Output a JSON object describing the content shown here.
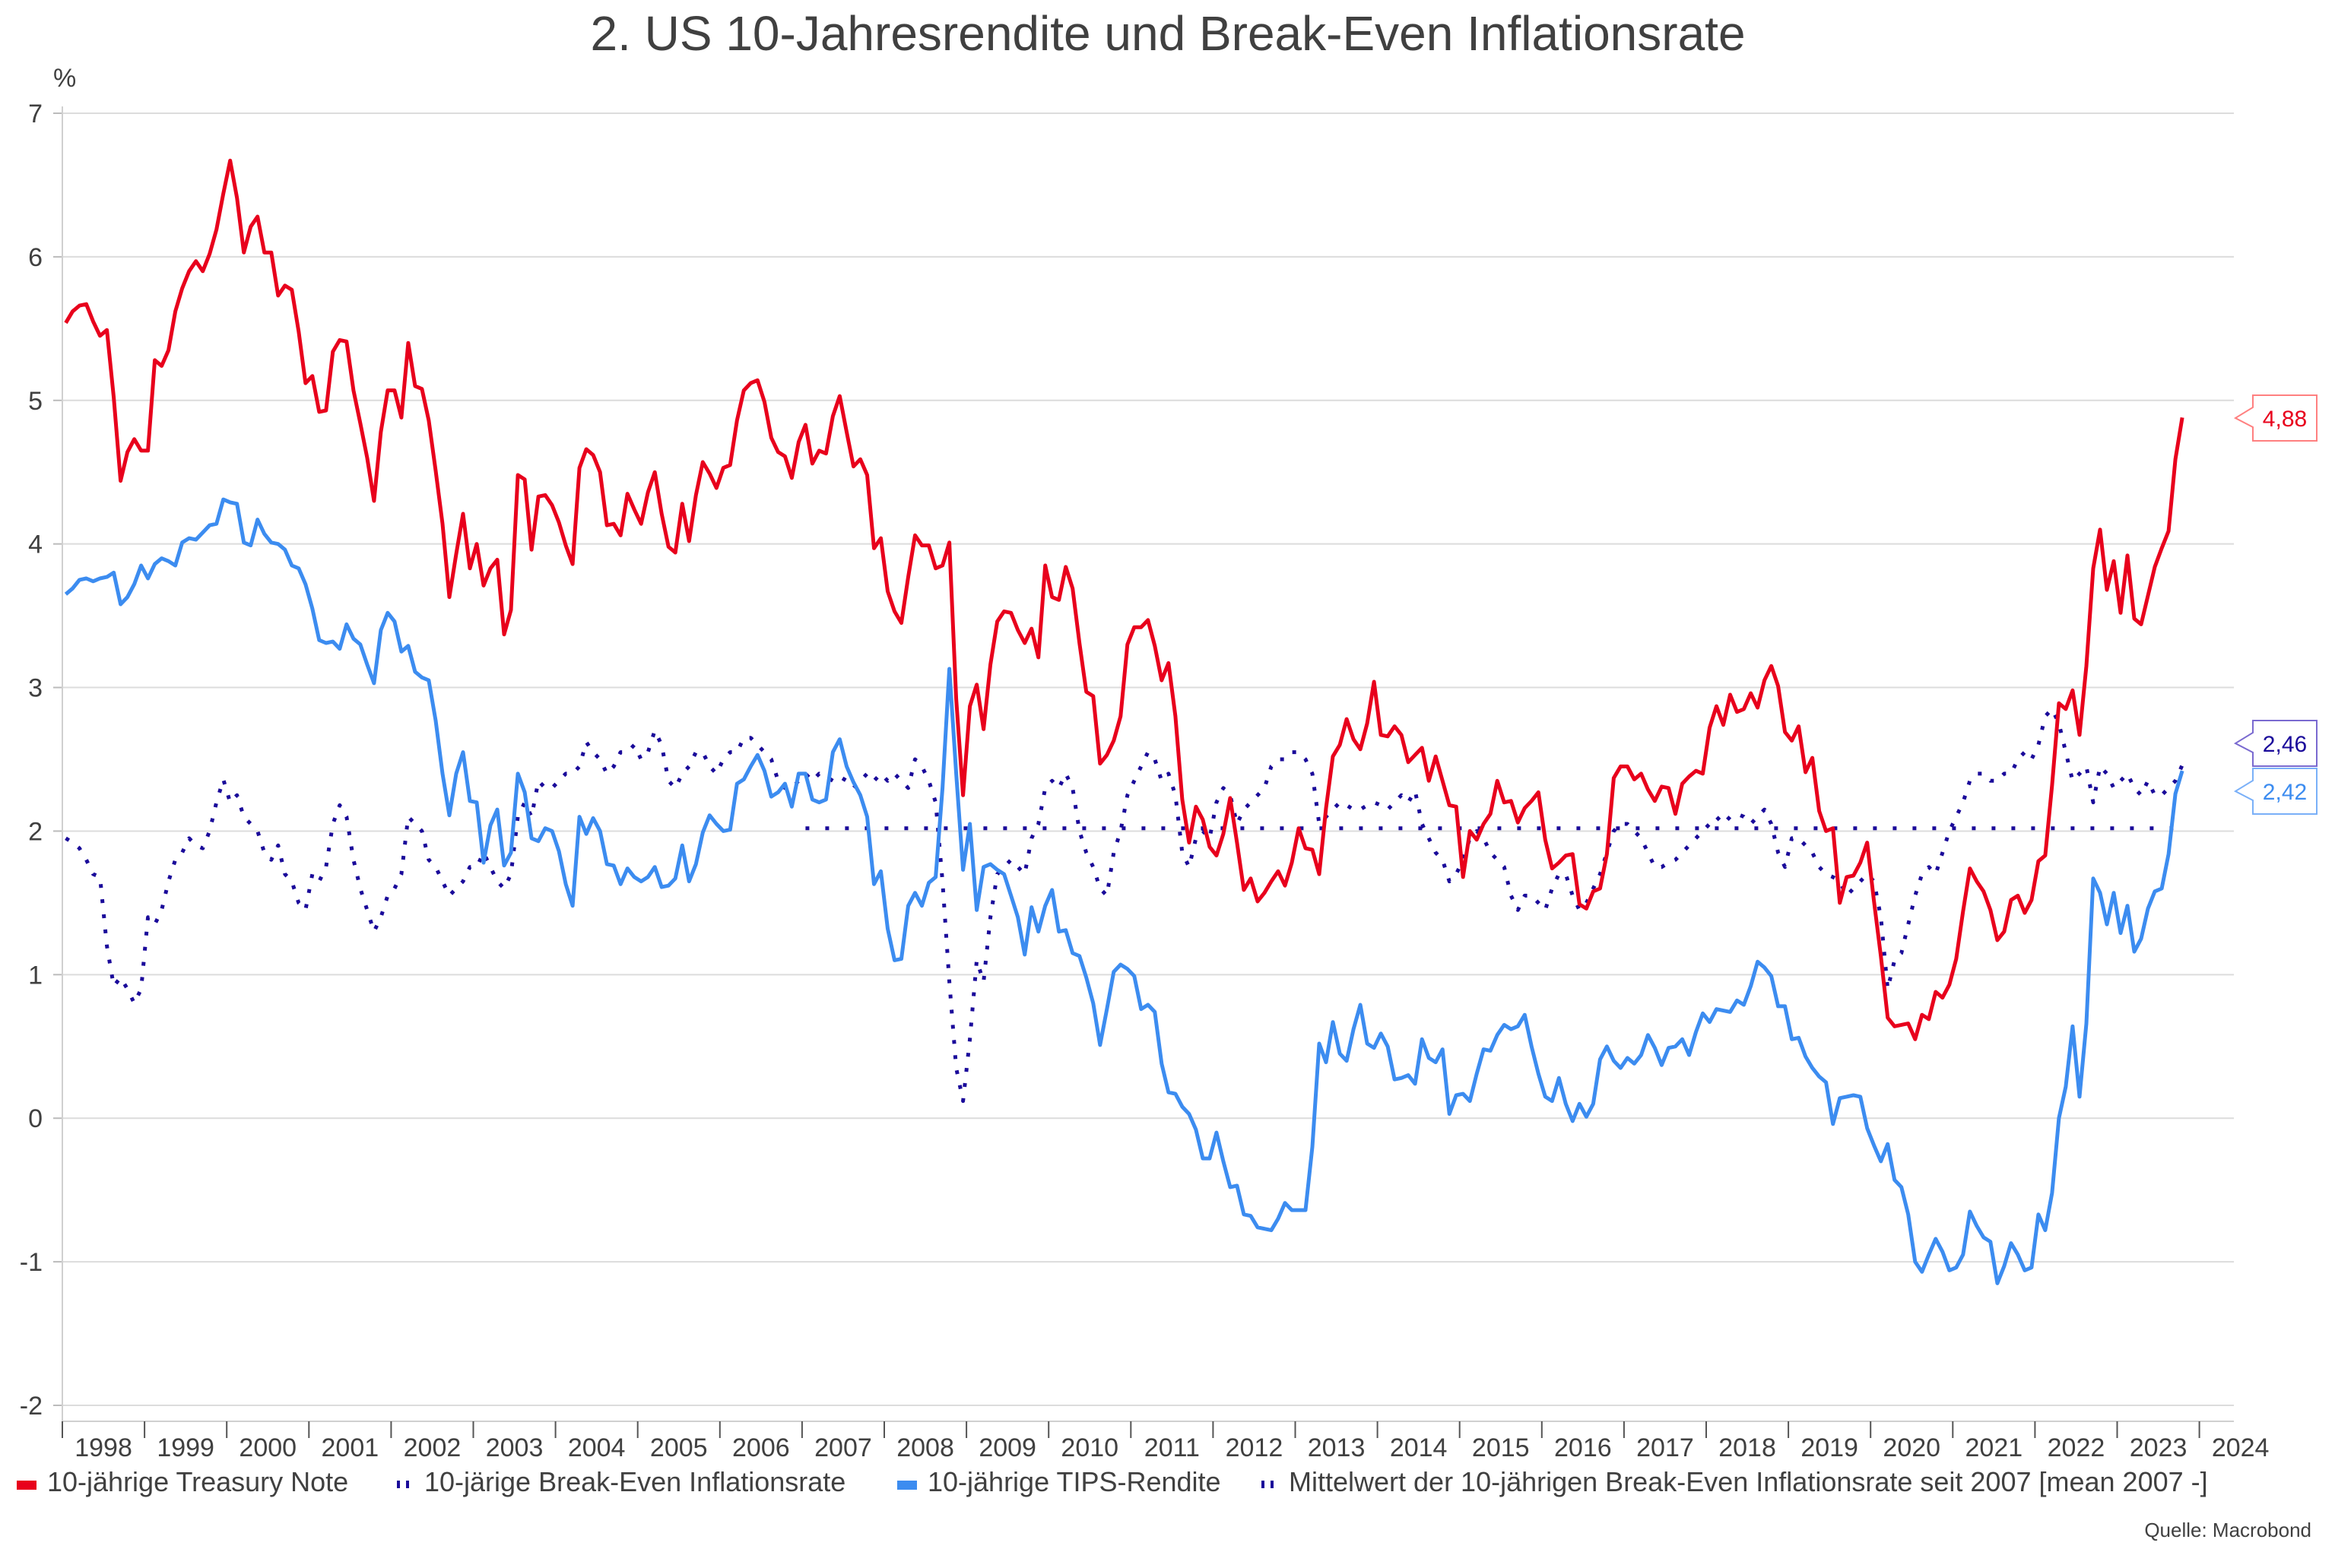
{
  "chart_data": {
    "type": "line",
    "title": "2. US 10-Jahresrendite und Break-Even Inflationsrate",
    "ylabel": "%",
    "xlabel": "",
    "ylim": [
      -2,
      7
    ],
    "yticks": [
      "-2",
      "-1",
      "0",
      "1",
      "2",
      "3",
      "4",
      "5",
      "6",
      "7"
    ],
    "xlim": [
      "1998-01",
      "2024-12"
    ],
    "xticks": [
      "1998",
      "1999",
      "2000",
      "2001",
      "2002",
      "2003",
      "2004",
      "2005",
      "2006",
      "2007",
      "2008",
      "2009",
      "2010",
      "2011",
      "2012",
      "2013",
      "2014",
      "2015",
      "2016",
      "2017",
      "2018",
      "2019",
      "2020",
      "2021",
      "2022",
      "2023",
      "2024"
    ],
    "grid": true,
    "legend_position": "bottom",
    "frequency": "monthly",
    "start": "1998-01",
    "source": "Quelle: Macrobond",
    "series": [
      {
        "name": "10-jährige Treasury Note",
        "color": "#e8001c",
        "style": "solid",
        "last_label": "4,88",
        "values": [
          5.54,
          5.62,
          5.66,
          5.67,
          5.55,
          5.45,
          5.49,
          5.02,
          4.44,
          4.64,
          4.73,
          4.65,
          4.65,
          5.28,
          5.24,
          5.35,
          5.62,
          5.78,
          5.9,
          5.97,
          5.9,
          6.02,
          6.19,
          6.44,
          6.67,
          6.41,
          6.03,
          6.21,
          6.28,
          6.03,
          6.03,
          5.73,
          5.8,
          5.77,
          5.48,
          5.12,
          5.17,
          4.92,
          4.93,
          5.34,
          5.42,
          5.41,
          5.07,
          4.84,
          4.6,
          4.3,
          4.78,
          5.07,
          5.07,
          4.88,
          5.4,
          5.1,
          5.08,
          4.86,
          4.51,
          4.14,
          3.63,
          3.93,
          4.21,
          3.83,
          4.0,
          3.71,
          3.83,
          3.89,
          3.37,
          3.54,
          4.48,
          4.45,
          3.96,
          4.33,
          4.34,
          4.27,
          4.15,
          3.99,
          3.86,
          4.53,
          4.66,
          4.62,
          4.5,
          4.13,
          4.14,
          4.06,
          4.35,
          4.24,
          4.14,
          4.36,
          4.5,
          4.21,
          3.98,
          3.94,
          4.28,
          4.02,
          4.34,
          4.57,
          4.49,
          4.39,
          4.53,
          4.55,
          4.86,
          5.07,
          5.12,
          5.14,
          4.99,
          4.74,
          4.64,
          4.61,
          4.46,
          4.71,
          4.83,
          4.56,
          4.65,
          4.63,
          4.89,
          5.03,
          4.78,
          4.54,
          4.59,
          4.48,
          3.97,
          4.04,
          3.67,
          3.53,
          3.45,
          3.77,
          4.06,
          3.99,
          3.99,
          3.83,
          3.85,
          4.01,
          2.92,
          2.25,
          2.87,
          3.02,
          2.71,
          3.16,
          3.46,
          3.53,
          3.52,
          3.4,
          3.31,
          3.41,
          3.21,
          3.85,
          3.63,
          3.61,
          3.84,
          3.69,
          3.31,
          2.97,
          2.94,
          2.47,
          2.53,
          2.63,
          2.8,
          3.3,
          3.42,
          3.42,
          3.47,
          3.29,
          3.05,
          3.17,
          2.8,
          2.22,
          1.92,
          2.17,
          2.08,
          1.89,
          1.83,
          1.98,
          2.23,
          1.92,
          1.59,
          1.67,
          1.51,
          1.57,
          1.65,
          1.72,
          1.62,
          1.78,
          2.02,
          1.88,
          1.87,
          1.7,
          2.16,
          2.52,
          2.6,
          2.78,
          2.64,
          2.57,
          2.75,
          3.04,
          2.67,
          2.66,
          2.73,
          2.67,
          2.48,
          2.53,
          2.58,
          2.35,
          2.52,
          2.35,
          2.18,
          2.17,
          1.68,
          2.0,
          1.94,
          2.05,
          2.12,
          2.35,
          2.2,
          2.21,
          2.06,
          2.16,
          2.21,
          2.27,
          1.94,
          1.74,
          1.78,
          1.83,
          1.84,
          1.49,
          1.46,
          1.58,
          1.6,
          1.84,
          2.37,
          2.45,
          2.45,
          2.36,
          2.4,
          2.29,
          2.21,
          2.31,
          2.3,
          2.12,
          2.33,
          2.38,
          2.42,
          2.4,
          2.72,
          2.87,
          2.74,
          2.95,
          2.83,
          2.85,
          2.96,
          2.86,
          3.05,
          3.15,
          3.01,
          2.69,
          2.63,
          2.73,
          2.41,
          2.51,
          2.14,
          2.0,
          2.02,
          1.5,
          1.68,
          1.69,
          1.78,
          1.92,
          1.51,
          1.13,
          0.7,
          0.64,
          0.65,
          0.66,
          0.55,
          0.72,
          0.69,
          0.88,
          0.84,
          0.93,
          1.11,
          1.44,
          1.74,
          1.65,
          1.58,
          1.45,
          1.24,
          1.3,
          1.52,
          1.55,
          1.43,
          1.52,
          1.79,
          1.83,
          2.32,
          2.89,
          2.85,
          2.98,
          2.67,
          3.15,
          3.83,
          4.1,
          3.68,
          3.88,
          3.52,
          3.92,
          3.48,
          3.44,
          3.64,
          3.84,
          3.97,
          4.09,
          4.59,
          4.88
        ]
      },
      {
        "name": "10-järige Break-Even Inflationsrate",
        "color": "#1a0a9a",
        "style": "dotted",
        "last_label": "2,46",
        "values": [
          1.95,
          1.92,
          1.88,
          1.8,
          1.7,
          1.68,
          1.2,
          0.92,
          0.98,
          0.9,
          0.8,
          0.9,
          1.4,
          1.35,
          1.45,
          1.65,
          1.8,
          1.85,
          1.95,
          1.9,
          1.88,
          2.0,
          2.2,
          2.36,
          2.2,
          2.25,
          2.1,
          2.05,
          2.0,
          1.85,
          1.8,
          1.9,
          1.7,
          1.65,
          1.5,
          1.45,
          1.7,
          1.65,
          1.75,
          2.05,
          2.18,
          2.1,
          1.8,
          1.6,
          1.45,
          1.3,
          1.4,
          1.55,
          1.6,
          1.7,
          2.1,
          2.05,
          2.0,
          1.8,
          1.75,
          1.65,
          1.55,
          1.6,
          1.65,
          1.75,
          1.75,
          1.85,
          1.75,
          1.65,
          1.6,
          1.7,
          2.1,
          2.2,
          2.1,
          2.35,
          2.3,
          2.3,
          2.35,
          2.4,
          2.4,
          2.45,
          2.62,
          2.55,
          2.5,
          2.4,
          2.45,
          2.55,
          2.55,
          2.6,
          2.5,
          2.55,
          2.7,
          2.6,
          2.35,
          2.3,
          2.4,
          2.45,
          2.55,
          2.55,
          2.45,
          2.4,
          2.5,
          2.55,
          2.55,
          2.65,
          2.65,
          2.6,
          2.55,
          2.5,
          2.35,
          2.3,
          2.3,
          2.35,
          2.4,
          2.35,
          2.4,
          2.38,
          2.35,
          2.38,
          2.35,
          2.3,
          2.35,
          2.4,
          2.35,
          2.4,
          2.35,
          2.4,
          2.35,
          2.3,
          2.5,
          2.45,
          2.35,
          2.2,
          1.65,
          0.95,
          0.35,
          0.12,
          0.55,
          1.1,
          0.95,
          1.4,
          1.7,
          1.75,
          1.8,
          1.75,
          1.7,
          1.95,
          2.05,
          2.3,
          2.35,
          2.3,
          2.4,
          2.3,
          2.0,
          1.85,
          1.75,
          1.6,
          1.55,
          1.85,
          2.0,
          2.25,
          2.35,
          2.45,
          2.55,
          2.5,
          2.35,
          2.4,
          2.25,
          1.85,
          1.75,
          1.95,
          2.0,
          1.95,
          2.2,
          2.3,
          2.25,
          2.05,
          2.15,
          2.2,
          2.25,
          2.3,
          2.45,
          2.5,
          2.5,
          2.55,
          2.55,
          2.5,
          2.4,
          2.05,
          2.1,
          2.15,
          2.2,
          2.18,
          2.15,
          2.15,
          2.18,
          2.2,
          2.18,
          2.15,
          2.2,
          2.25,
          2.2,
          2.28,
          2.05,
          1.95,
          1.85,
          1.8,
          1.65,
          1.7,
          1.8,
          1.95,
          2.0,
          1.95,
          1.85,
          1.8,
          1.75,
          1.55,
          1.45,
          1.55,
          1.55,
          1.5,
          1.45,
          1.6,
          1.7,
          1.7,
          1.55,
          1.45,
          1.5,
          1.6,
          1.7,
          1.85,
          2.0,
          2.05,
          2.05,
          2.0,
          1.95,
          1.85,
          1.75,
          1.75,
          1.78,
          1.8,
          1.85,
          1.9,
          1.95,
          2.0,
          2.05,
          2.1,
          2.05,
          2.1,
          2.12,
          2.1,
          2.05,
          2.1,
          2.15,
          2.05,
          1.85,
          1.75,
          1.95,
          1.95,
          1.9,
          1.85,
          1.75,
          1.7,
          1.68,
          1.65,
          1.55,
          1.6,
          1.65,
          1.7,
          1.65,
          1.4,
          0.9,
          1.1,
          1.15,
          1.35,
          1.55,
          1.7,
          1.75,
          1.7,
          1.85,
          2.0,
          2.1,
          2.2,
          2.35,
          2.4,
          2.4,
          2.35,
          2.35,
          2.4,
          2.4,
          2.5,
          2.55,
          2.5,
          2.6,
          2.8,
          2.85,
          2.75,
          2.55,
          2.35,
          2.4,
          2.45,
          2.2,
          2.45,
          2.4,
          2.3,
          2.35,
          2.4,
          2.3,
          2.25,
          2.35,
          2.25,
          2.25,
          2.3,
          2.35,
          2.46
        ]
      },
      {
        "name": "10-jährige TIPS-Rendite",
        "color": "#3c8cf0",
        "style": "solid",
        "last_label": "2,42",
        "values": [
          3.65,
          3.69,
          3.75,
          3.76,
          3.74,
          3.76,
          3.77,
          3.8,
          3.58,
          3.63,
          3.72,
          3.85,
          3.76,
          3.86,
          3.9,
          3.88,
          3.85,
          4.01,
          4.04,
          4.03,
          4.08,
          4.13,
          4.14,
          4.31,
          4.29,
          4.28,
          4.01,
          3.99,
          4.17,
          4.07,
          4.01,
          4.0,
          3.96,
          3.85,
          3.83,
          3.72,
          3.55,
          3.33,
          3.31,
          3.32,
          3.27,
          3.44,
          3.34,
          3.3,
          3.16,
          3.03,
          3.4,
          3.52,
          3.46,
          3.25,
          3.29,
          3.11,
          3.07,
          3.05,
          2.77,
          2.4,
          2.11,
          2.4,
          2.55,
          2.21,
          2.2,
          1.78,
          2.04,
          2.15,
          1.76,
          1.85,
          2.4,
          2.27,
          1.95,
          1.93,
          2.02,
          2.0,
          1.86,
          1.63,
          1.48,
          2.1,
          1.98,
          2.09,
          2.0,
          1.77,
          1.76,
          1.63,
          1.74,
          1.68,
          1.65,
          1.68,
          1.75,
          1.61,
          1.62,
          1.67,
          1.9,
          1.65,
          1.77,
          1.99,
          2.11,
          2.05,
          2.0,
          2.01,
          2.33,
          2.36,
          2.45,
          2.53,
          2.42,
          2.24,
          2.27,
          2.33,
          2.17,
          2.4,
          2.4,
          2.22,
          2.2,
          2.22,
          2.55,
          2.64,
          2.45,
          2.34,
          2.25,
          2.1,
          1.63,
          1.72,
          1.32,
          1.1,
          1.11,
          1.48,
          1.57,
          1.48,
          1.64,
          1.68,
          2.3,
          3.13,
          2.4,
          1.73,
          2.05,
          1.45,
          1.75,
          1.77,
          1.73,
          1.7,
          1.55,
          1.4,
          1.14,
          1.47,
          1.3,
          1.48,
          1.59,
          1.3,
          1.31,
          1.15,
          1.13,
          0.98,
          0.8,
          0.51,
          0.76,
          1.02,
          1.07,
          1.04,
          0.99,
          0.76,
          0.79,
          0.74,
          0.38,
          0.18,
          0.17,
          0.08,
          0.03,
          -0.08,
          -0.28,
          -0.28,
          -0.1,
          -0.3,
          -0.48,
          -0.47,
          -0.67,
          -0.68,
          -0.76,
          -0.77,
          -0.78,
          -0.7,
          -0.59,
          -0.64,
          -0.64,
          -0.64,
          -0.2,
          0.52,
          0.39,
          0.67,
          0.45,
          0.4,
          0.62,
          0.79,
          0.52,
          0.49,
          0.59,
          0.5,
          0.27,
          0.28,
          0.3,
          0.24,
          0.55,
          0.42,
          0.39,
          0.48,
          0.03,
          0.16,
          0.17,
          0.12,
          0.31,
          0.48,
          0.47,
          0.58,
          0.65,
          0.62,
          0.64,
          0.72,
          0.5,
          0.31,
          0.15,
          0.12,
          0.28,
          0.1,
          -0.02,
          0.1,
          0.01,
          0.1,
          0.41,
          0.5,
          0.4,
          0.35,
          0.42,
          0.38,
          0.44,
          0.58,
          0.49,
          0.37,
          0.49,
          0.5,
          0.55,
          0.44,
          0.6,
          0.73,
          0.67,
          0.76,
          0.75,
          0.74,
          0.82,
          0.79,
          0.92,
          1.09,
          1.05,
          0.99,
          0.78,
          0.78,
          0.55,
          0.56,
          0.43,
          0.35,
          0.29,
          0.25,
          -0.04,
          0.14,
          0.15,
          0.16,
          0.15,
          -0.07,
          -0.19,
          -0.3,
          -0.18,
          -0.43,
          -0.48,
          -0.67,
          -1.0,
          -1.07,
          -0.95,
          -0.84,
          -0.93,
          -1.06,
          -1.04,
          -0.95,
          -0.65,
          -0.75,
          -0.83,
          -0.86,
          -1.15,
          -1.03,
          -0.87,
          -0.95,
          -1.06,
          -1.04,
          -0.67,
          -0.78,
          -0.52,
          0.0,
          0.22,
          0.64,
          0.15,
          0.66,
          1.67,
          1.57,
          1.35,
          1.57,
          1.29,
          1.48,
          1.16,
          1.25,
          1.46,
          1.58,
          1.6,
          1.84,
          2.26,
          2.42
        ]
      },
      {
        "name": "Mittelwert der 10-jährigen Break-Even Inflationsrate seit 2007 [mean 2007 -]",
        "color": "#1a0a9a",
        "style": "dotted",
        "start": "2007-01",
        "end": "2023-10",
        "value": 2.02
      }
    ]
  }
}
